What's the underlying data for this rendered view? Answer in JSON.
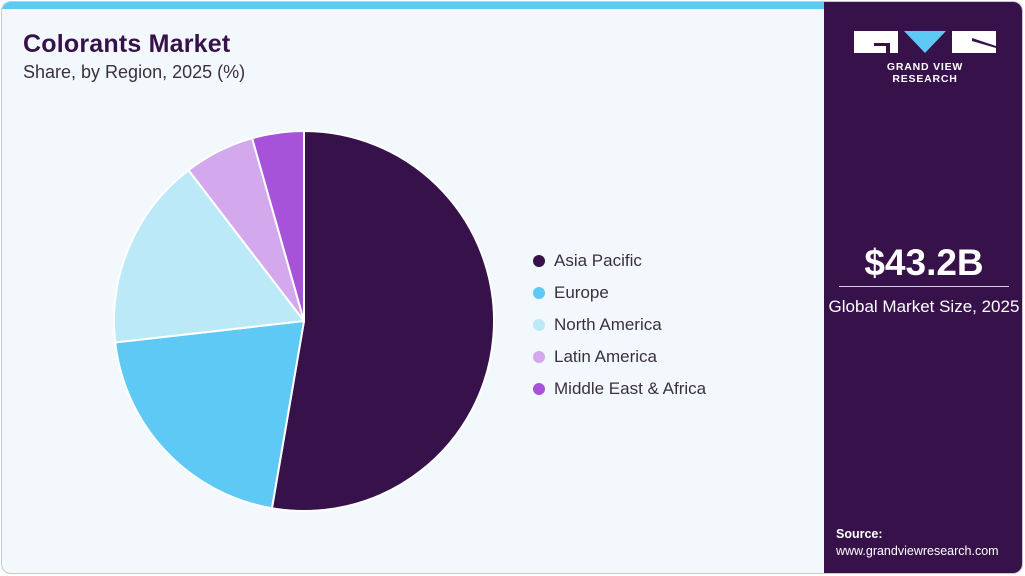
{
  "header": {
    "title": "Colorants Market",
    "subtitle": "Share, by Region, 2025 (%)"
  },
  "legend": {
    "items": [
      {
        "label": "Asia Pacific",
        "color": "#37114a"
      },
      {
        "label": "Europe",
        "color": "#5ec9f5"
      },
      {
        "label": "North America",
        "color": "#bce9f8"
      },
      {
        "label": "Latin America",
        "color": "#d3a8ec"
      },
      {
        "label": "Middle East & Africa",
        "color": "#a652d9"
      }
    ]
  },
  "sidebar": {
    "brand": "GRAND VIEW RESEARCH",
    "market_value": "$43.2B",
    "market_value_label": "Global Market Size, 2025",
    "source_title": "Source:",
    "source_url": "www.grandviewresearch.com"
  },
  "colors": {
    "accent": "#5ec9f5",
    "brand_dark": "#37114a",
    "background": "#f2f8fb"
  },
  "chart_data": {
    "type": "pie",
    "title": "Colorants Market",
    "subtitle": "Share, by Region, 2025 (%)",
    "categories": [
      "Asia Pacific",
      "Europe",
      "North America",
      "Latin America",
      "Middle East & Africa"
    ],
    "values": [
      52.7,
      20.5,
      16.4,
      6.0,
      4.4
    ],
    "colors": [
      "#37114a",
      "#5ec9f5",
      "#bce9f8",
      "#d3a8ec",
      "#a652d9"
    ],
    "start_angle": "12 o'clock, clockwise",
    "legend_position": "right"
  }
}
